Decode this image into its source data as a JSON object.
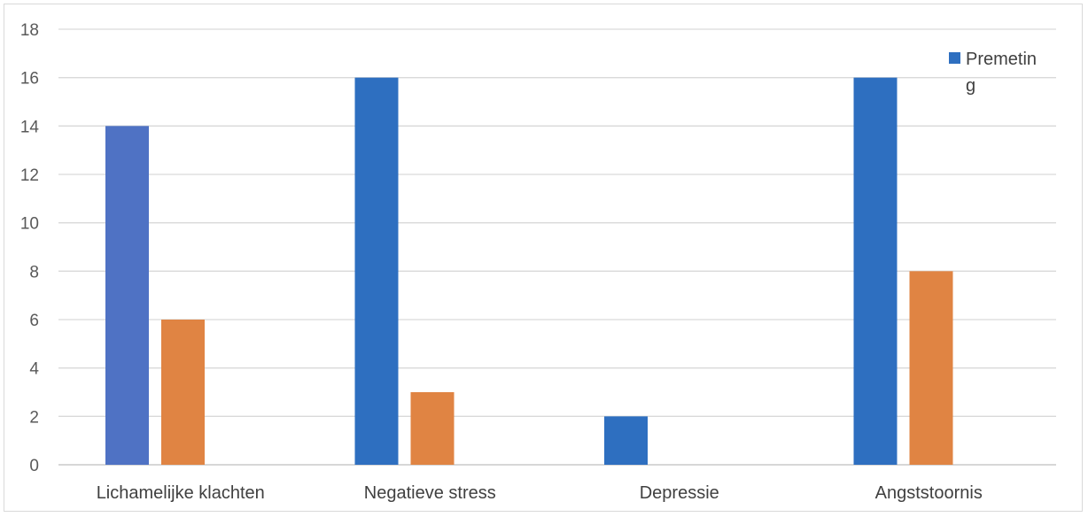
{
  "chart_data": {
    "type": "bar",
    "categories": [
      "Lichamelijke klachten",
      "Negatieve stress",
      "Depressie",
      "Angststoornis"
    ],
    "series": [
      {
        "name": "Premeting",
        "values": [
          14,
          16,
          2,
          16
        ],
        "color": "#2e6fc0"
      },
      {
        "values": [
          6,
          3,
          0,
          8
        ],
        "color": "#e08443"
      }
    ],
    "first_bar_color": "#4f72c4",
    "ylim": [
      0,
      18
    ],
    "yticks": [
      0,
      2,
      4,
      6,
      8,
      10,
      12,
      14,
      16,
      18
    ],
    "grid": true,
    "legend": {
      "placement": "top-right",
      "lines": [
        "Premetin",
        "g"
      ]
    }
  }
}
